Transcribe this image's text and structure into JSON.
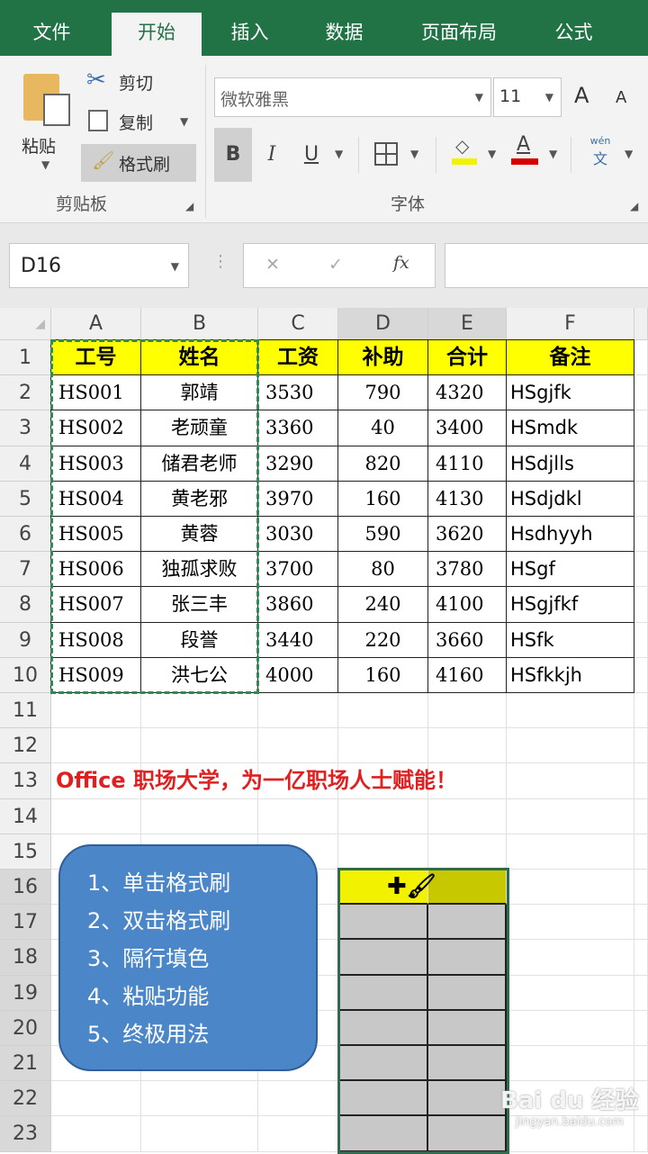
{
  "tabs": [
    "文件",
    "开始",
    "插入",
    "数据",
    "页面布局",
    "公式"
  ],
  "active_tab": "开始",
  "clipboard": {
    "paste": "粘贴",
    "cut": "剪切",
    "copy": "复制",
    "format_painter": "格式刷",
    "group": "剪贴板"
  },
  "font": {
    "name": "微软雅黑",
    "size": "11",
    "group": "字体",
    "bold": "B",
    "italic": "I",
    "underline": "U",
    "grow": "A",
    "shrink": "A",
    "phonetic_top": "wén",
    "phonetic_bottom": "文",
    "fill_color": "#f2f200",
    "font_color": "#d40000"
  },
  "formula_bar": {
    "name_box": "D16",
    "cancel": "✕",
    "enter": "✓",
    "fx": "fx",
    "value": ""
  },
  "columns": [
    "A",
    "B",
    "C",
    "D",
    "E",
    "F"
  ],
  "rows": [
    "1",
    "2",
    "3",
    "4",
    "5",
    "6",
    "7",
    "8",
    "9",
    "10",
    "11",
    "12",
    "13",
    "14",
    "15",
    "16",
    "17",
    "18",
    "19",
    "20",
    "21",
    "22",
    "23"
  ],
  "table": {
    "header": [
      "工号",
      "姓名",
      "工资",
      "补助",
      "合计",
      "备注"
    ],
    "data": [
      [
        "HS001",
        "郭靖",
        "3530",
        "790",
        "4320",
        "HSgjfk"
      ],
      [
        "HS002",
        "老顽童",
        "3360",
        "40",
        "3400",
        "HSmdk"
      ],
      [
        "HS003",
        "储君老师",
        "3290",
        "820",
        "4110",
        "HSdjlls"
      ],
      [
        "HS004",
        "黄老邪",
        "3970",
        "160",
        "4130",
        "HSdjdkl"
      ],
      [
        "HS005",
        "黄蓉",
        "3030",
        "590",
        "3620",
        "Hsdhyyh"
      ],
      [
        "HS006",
        "独孤求败",
        "3700",
        "80",
        "3780",
        "HSgf"
      ],
      [
        "HS007",
        "张三丰",
        "3860",
        "240",
        "4100",
        "HSgjfkf"
      ],
      [
        "HS008",
        "段誉",
        "3440",
        "220",
        "3660",
        "HSfk"
      ],
      [
        "HS009",
        "洪七公",
        "4000",
        "160",
        "4160",
        "HSfkkjh"
      ]
    ]
  },
  "slogan": "Office 职场大学，为一亿职场人士赋能！",
  "menu": [
    "1、单击格式刷",
    "2、双击格式刷",
    "3、隔行填色",
    "4、粘贴功能",
    "5、终极用法"
  ],
  "watermark": {
    "logo": "Bai du 经验",
    "url": "jingyan.baidu.com"
  },
  "colors": {
    "accent": "#217346",
    "header_fill": "#ffff00",
    "slogan": "#e02020",
    "menu_box": "#4a86c8",
    "gray_fill": "#c8c8c8"
  }
}
